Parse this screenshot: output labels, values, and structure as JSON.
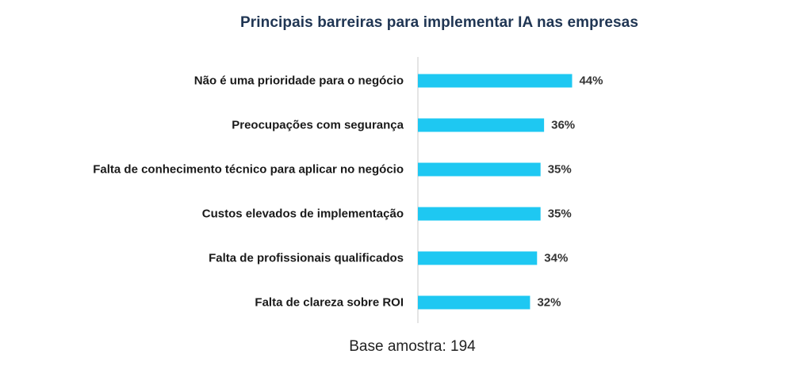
{
  "chart_data": {
    "type": "bar",
    "orientation": "horizontal",
    "title": "Principais barreiras para implementar IA nas empresas",
    "categories": [
      "Não é uma prioridade para o negócio",
      "Preocupações com segurança",
      "Falta de conhecimento técnico para aplicar no negócio",
      "Custos elevados de implementação",
      "Falta de profissionais qualificados",
      "Falta de clareza sobre ROI"
    ],
    "values": [
      44,
      36,
      35,
      35,
      34,
      32
    ],
    "value_labels": [
      "44%",
      "36%",
      "35%",
      "35%",
      "34%",
      "32%"
    ],
    "unit": "%",
    "xlim": [
      0,
      100
    ],
    "grid": false,
    "legend": "none",
    "bar_color": "#1ec8f2",
    "axis_color": "#c8c8c8"
  },
  "footnote": "Base amostra: 194"
}
